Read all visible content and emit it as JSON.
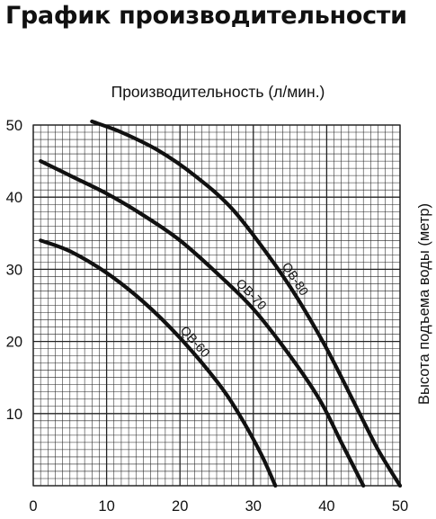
{
  "chart_data": {
    "type": "line",
    "title": "График производительности",
    "xlabel": "Производительность (л/мин.)",
    "ylabel": "Высота подъема воды (метр)",
    "xlim": [
      0,
      50
    ],
    "ylim": [
      0,
      50
    ],
    "xticks": [
      "0",
      "10",
      "20",
      "30",
      "40",
      "50"
    ],
    "yticks": [
      "10",
      "20",
      "30",
      "40",
      "50"
    ],
    "grid": true,
    "series": [
      {
        "name": "QB-60",
        "points": [
          [
            1,
            34
          ],
          [
            5,
            32.5
          ],
          [
            10,
            29.5
          ],
          [
            15,
            25.5
          ],
          [
            20,
            20.5
          ],
          [
            25,
            14.5
          ],
          [
            28,
            10
          ],
          [
            31,
            4.5
          ],
          [
            33,
            0
          ]
        ]
      },
      {
        "name": "QB-70",
        "points": [
          [
            1,
            45
          ],
          [
            5,
            43
          ],
          [
            10,
            40.5
          ],
          [
            15,
            37.5
          ],
          [
            20,
            34
          ],
          [
            25,
            29.5
          ],
          [
            30,
            24.5
          ],
          [
            35,
            18
          ],
          [
            39,
            12
          ],
          [
            42,
            6
          ],
          [
            45,
            0
          ]
        ]
      },
      {
        "name": "QB-80",
        "points": [
          [
            8,
            50.5
          ],
          [
            12,
            49
          ],
          [
            17,
            46.5
          ],
          [
            22,
            43
          ],
          [
            27,
            38.5
          ],
          [
            32,
            32
          ],
          [
            36,
            26
          ],
          [
            40,
            19
          ],
          [
            44,
            11
          ],
          [
            47,
            5
          ],
          [
            50,
            0
          ]
        ]
      }
    ]
  }
}
